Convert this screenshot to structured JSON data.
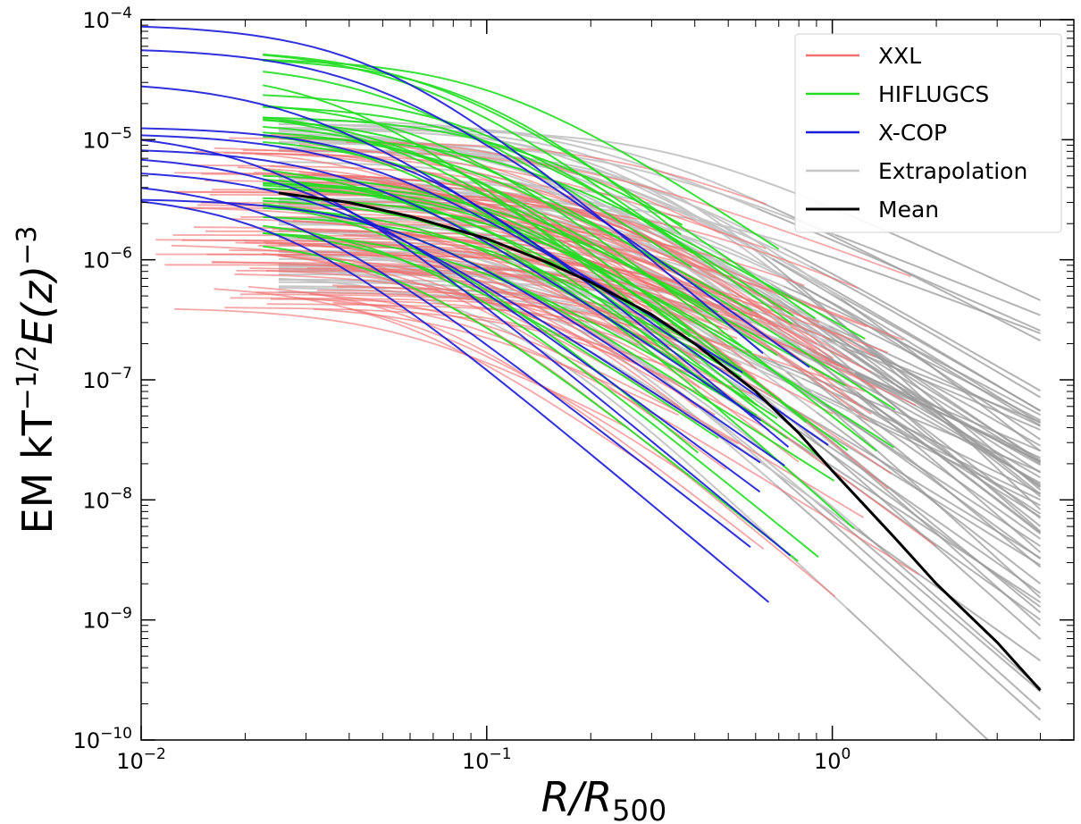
{
  "chart_data": {
    "type": "line",
    "xlabel_main": "R/R",
    "xlabel_sub": "500",
    "ylabel_text": "EM kT",
    "ylabel_exp1": "−1/2",
    "ylabel_ez": "E(z)",
    "ylabel_exp2": "−3",
    "x_scale": "log",
    "y_scale": "log",
    "xlim": [
      0.01,
      5.0
    ],
    "ylim": [
      1e-10,
      0.0001
    ],
    "x_ticks": [
      {
        "value": 0.01,
        "base": "10",
        "exp": "−2"
      },
      {
        "value": 0.1,
        "base": "10",
        "exp": "−1"
      },
      {
        "value": 1,
        "base": "10",
        "exp": "0"
      }
    ],
    "y_ticks": [
      {
        "value": 1e-10,
        "base": "10",
        "exp": "−10"
      },
      {
        "value": 1e-09,
        "base": "10",
        "exp": "−9"
      },
      {
        "value": 1e-08,
        "base": "10",
        "exp": "−8"
      },
      {
        "value": 1e-07,
        "base": "10",
        "exp": "−7"
      },
      {
        "value": 1e-06,
        "base": "10",
        "exp": "−6"
      },
      {
        "value": 1e-05,
        "base": "10",
        "exp": "−5"
      },
      {
        "value": 0.0001,
        "base": "10",
        "exp": "−4"
      }
    ],
    "grid": false,
    "legend_position": "top-right",
    "series": [
      {
        "name": "XXL",
        "color": "#f07070"
      },
      {
        "name": "HIFLUGCS",
        "color": "#22dd22"
      },
      {
        "name": "X-COP",
        "color": "#1a1ad8"
      },
      {
        "name": "Extrapolation",
        "color": "#c4c4c4"
      },
      {
        "name": "Mean",
        "color": "#000000"
      }
    ],
    "mean_curve": {
      "x": [
        0.025,
        0.04,
        0.06,
        0.1,
        0.15,
        0.2,
        0.3,
        0.4,
        0.6,
        0.8,
        1.0,
        1.5,
        2.0,
        3.0,
        4.0
      ],
      "y": [
        3.6e-06,
        3e-06,
        2.3e-06,
        1.5e-06,
        9.5e-07,
        6.5e-07,
        3.5e-07,
        2e-07,
        8e-08,
        3.6e-08,
        1.75e-08,
        5e-09,
        2e-09,
        6.5e-10,
        2.6e-10
      ]
    },
    "bundles": [
      {
        "series": "Extrapolation",
        "count": 70,
        "x_start": 0.025,
        "x_end": 4.0,
        "core_range": [
          5e-07,
          1.5e-05
        ],
        "break_range": [
          0.1,
          0.4
        ],
        "slope_range": [
          -2.8,
          -1.1
        ],
        "tail_color": "#999999"
      },
      {
        "series": "XXL",
        "count": 90,
        "x_start_range": [
          0.011,
          0.04
        ],
        "x_end_range": [
          0.25,
          2.0
        ],
        "core_range": [
          4e-07,
          1.2e-05
        ],
        "break_range": [
          0.05,
          0.35
        ],
        "slope_range": [
          -2.4,
          -1.0
        ]
      },
      {
        "series": "HIFLUGCS",
        "count": 35,
        "x_start": 0.0225,
        "x_end_range": [
          0.35,
          1.6
        ],
        "core_range": [
          1.5e-06,
          6e-05
        ],
        "break_range": [
          0.04,
          0.12
        ],
        "slope_range": [
          -2.6,
          -1.6
        ]
      },
      {
        "series": "X-COP",
        "count": 12,
        "x_start": 0.01,
        "x_end_range": [
          0.5,
          1.1
        ],
        "core_range": [
          3e-06,
          0.0001
        ],
        "break_range": [
          0.02,
          0.06
        ],
        "slope_range": [
          -2.5,
          -1.7
        ]
      }
    ]
  }
}
